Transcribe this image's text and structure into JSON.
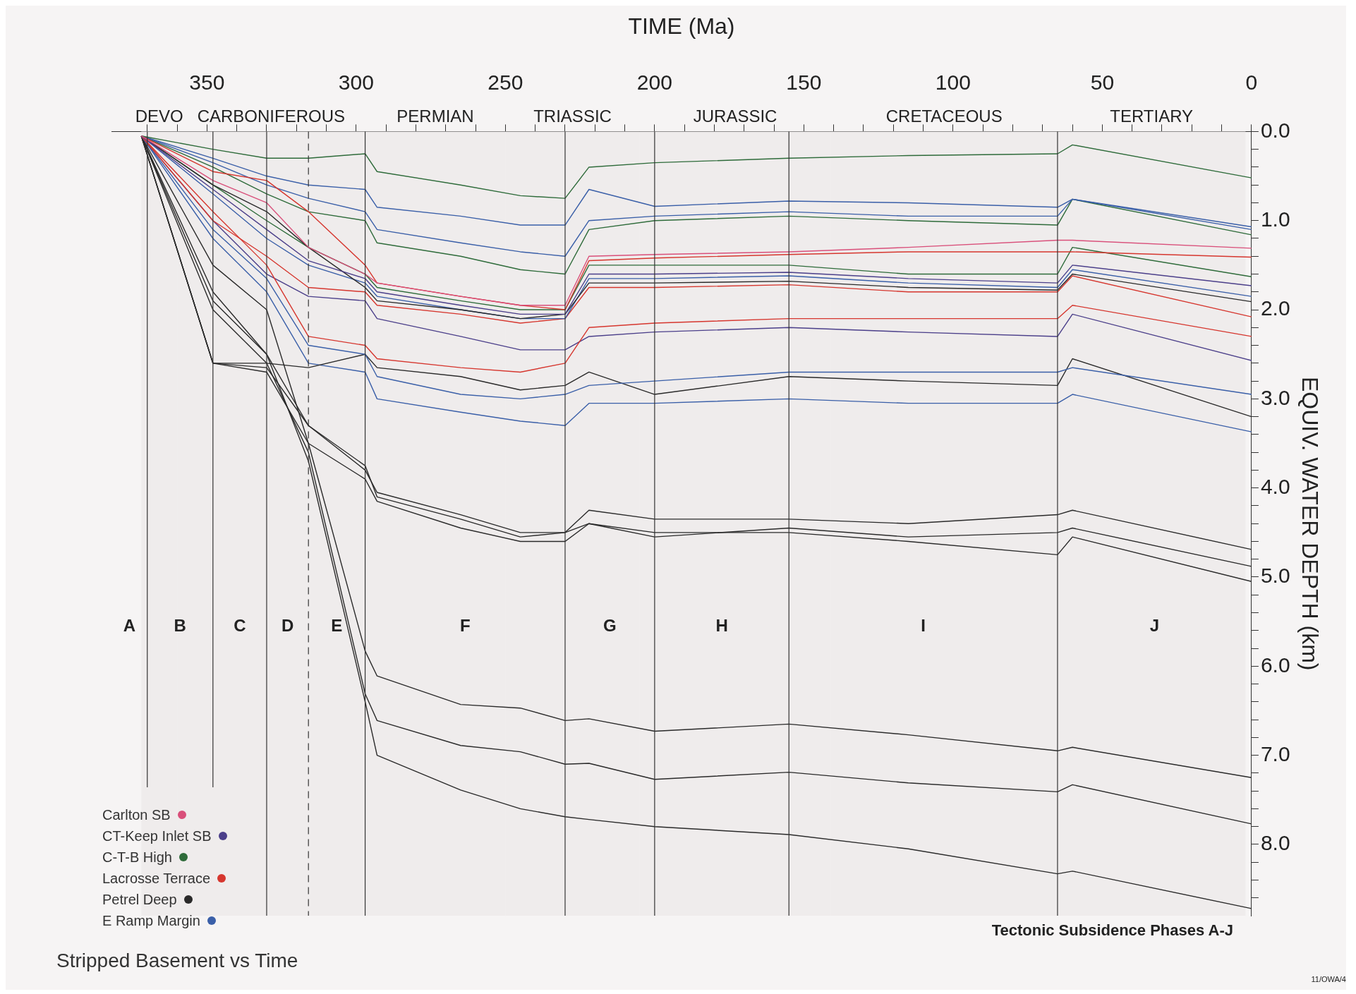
{
  "chart_data": {
    "type": "line",
    "title": "Stripped Basement vs Time",
    "xlabel": "TIME (Ma)",
    "ylabel": "EQUIV. WATER DEPTH (km)",
    "x": [
      372,
      348,
      330,
      316,
      297,
      293,
      265,
      245,
      230,
      222,
      200,
      155,
      115,
      65,
      60,
      0
    ],
    "series": [
      {
        "name": "Carlton SB",
        "color": "#d94f7a",
        "values": [
          0.05,
          0.55,
          0.8,
          1.3,
          1.6,
          1.7,
          1.85,
          1.95,
          1.95,
          1.4,
          1.38,
          1.35,
          1.3,
          1.22,
          1.22,
          1.31
        ]
      },
      {
        "name": "CT-Keep Inlet SB",
        "color": "#4b3f8a",
        "values": [
          0.05,
          0.65,
          1.1,
          1.45,
          1.65,
          1.8,
          1.95,
          2.05,
          2.05,
          1.6,
          1.6,
          1.58,
          1.65,
          1.7,
          1.5,
          1.73
        ]
      },
      {
        "name": "C-T-B High",
        "color": "#2e6b3a",
        "values": [
          0.05,
          0.2,
          0.3,
          0.3,
          0.25,
          0.45,
          0.6,
          0.72,
          0.75,
          0.4,
          0.35,
          0.3,
          0.27,
          0.25,
          0.15,
          0.52
        ]
      },
      {
        "name": "Lacrosse Terrace",
        "color": "#d6362e",
        "values": [
          0.05,
          0.45,
          0.55,
          0.9,
          1.5,
          1.7,
          1.85,
          1.95,
          2.0,
          1.45,
          1.42,
          1.38,
          1.35,
          1.35,
          1.35,
          1.41
        ]
      },
      {
        "name": "Petrel Deep",
        "color": "#2a2a2a",
        "values": [
          0.05,
          0.6,
          0.9,
          1.3,
          1.75,
          1.9,
          2.0,
          2.1,
          2.05,
          1.7,
          1.7,
          1.68,
          1.75,
          1.78,
          1.6,
          1.91
        ]
      },
      {
        "name": "E Ramp Margin",
        "color": "#3a5fa8",
        "values": [
          0.05,
          0.3,
          0.5,
          0.6,
          0.65,
          0.85,
          0.95,
          1.05,
          1.05,
          0.65,
          0.84,
          0.78,
          0.8,
          0.85,
          0.76,
          1.07
        ]
      },
      {
        "color": "#3a5fa8",
        "values": [
          0.05,
          0.35,
          0.6,
          0.75,
          0.9,
          1.1,
          1.25,
          1.35,
          1.4,
          1.0,
          0.95,
          0.9,
          0.95,
          0.95,
          0.76,
          1.1
        ]
      },
      {
        "color": "#2e6b3a",
        "values": [
          0.05,
          0.4,
          0.7,
          0.9,
          1.0,
          1.25,
          1.4,
          1.55,
          1.6,
          1.1,
          1.0,
          0.95,
          1.0,
          1.05,
          0.76,
          1.16
        ]
      },
      {
        "color": "#2e6b3a",
        "values": [
          0.05,
          0.6,
          1.0,
          1.3,
          1.6,
          1.75,
          1.9,
          2.0,
          2.0,
          1.5,
          1.5,
          1.5,
          1.6,
          1.6,
          1.3,
          1.63
        ]
      },
      {
        "color": "#3a5fa8",
        "values": [
          0.05,
          0.7,
          1.2,
          1.5,
          1.7,
          1.85,
          2.0,
          2.1,
          2.1,
          1.65,
          1.65,
          1.62,
          1.7,
          1.75,
          1.55,
          1.85
        ]
      },
      {
        "color": "#d6362e",
        "values": [
          0.05,
          1.0,
          1.4,
          1.75,
          1.8,
          1.95,
          2.05,
          2.15,
          2.1,
          1.75,
          1.75,
          1.72,
          1.8,
          1.8,
          1.62,
          2.08
        ]
      },
      {
        "color": "#d6362e",
        "values": [
          0.05,
          0.9,
          1.5,
          2.3,
          2.4,
          2.55,
          2.65,
          2.7,
          2.6,
          2.2,
          2.15,
          2.1,
          2.1,
          2.1,
          1.95,
          2.3
        ]
      },
      {
        "color": "#4b3f8a",
        "values": [
          0.05,
          1.0,
          1.6,
          1.85,
          1.9,
          2.1,
          2.3,
          2.45,
          2.45,
          2.3,
          2.25,
          2.2,
          2.25,
          2.3,
          2.05,
          2.57
        ]
      },
      {
        "color": "#3a5fa8",
        "values": [
          0.05,
          1.1,
          1.65,
          2.4,
          2.5,
          2.75,
          2.95,
          3.0,
          2.95,
          2.85,
          2.8,
          2.7,
          2.7,
          2.7,
          2.65,
          2.95
        ]
      },
      {
        "color": "#2a2a2a",
        "values": [
          0.05,
          2.6,
          2.6,
          2.65,
          2.5,
          2.65,
          2.75,
          2.9,
          2.85,
          2.7,
          2.95,
          2.75,
          2.8,
          2.85,
          2.55,
          3.2
        ]
      },
      {
        "color": "#3a5fa8",
        "values": [
          0.05,
          1.2,
          1.8,
          2.6,
          2.7,
          3.0,
          3.15,
          3.25,
          3.3,
          3.05,
          3.05,
          3.0,
          3.05,
          3.05,
          2.95,
          3.37
        ]
      },
      {
        "color": "#2a2a2a",
        "values": [
          0.05,
          2.6,
          2.65,
          3.3,
          3.8,
          4.05,
          4.3,
          4.5,
          4.5,
          4.25,
          4.35,
          4.35,
          4.4,
          4.3,
          4.25,
          4.69
        ]
      },
      {
        "color": "#2a2a2a",
        "values": [
          0.05,
          1.9,
          2.5,
          3.3,
          3.75,
          4.1,
          4.35,
          4.55,
          4.5,
          4.4,
          4.55,
          4.45,
          4.55,
          4.5,
          4.45,
          4.88
        ]
      },
      {
        "color": "#2a2a2a",
        "values": [
          0.05,
          1.5,
          2.0,
          3.5,
          3.9,
          4.15,
          4.45,
          4.6,
          4.6,
          4.4,
          4.5,
          4.5,
          4.6,
          4.75,
          4.55,
          5.05
        ]
      },
      {
        "color": "#2a2a2a",
        "values": [
          0.05,
          2.6,
          2.7,
          3.5,
          5.83,
          6.11,
          6.43,
          6.47,
          6.61,
          6.59,
          6.73,
          6.65,
          6.77,
          6.95,
          6.91,
          7.25
        ]
      },
      {
        "color": "#2a2a2a",
        "values": [
          0.05,
          2.0,
          2.6,
          3.6,
          6.31,
          6.61,
          6.89,
          6.96,
          7.1,
          7.09,
          7.27,
          7.19,
          7.31,
          7.41,
          7.33,
          7.77
        ]
      },
      {
        "color": "#2a2a2a",
        "values": [
          0.05,
          1.8,
          2.5,
          3.7,
          6.4,
          7.0,
          7.39,
          7.6,
          7.69,
          7.72,
          7.8,
          7.89,
          8.05,
          8.33,
          8.3,
          8.72
        ]
      }
    ],
    "xlim": [
      382,
      0
    ],
    "xticks": [
      {
        "value": 370,
        "label": null
      },
      {
        "value": 360,
        "label": null
      },
      350,
      {
        "value": 340,
        "label": null
      },
      {
        "value": 330,
        "label": null
      },
      {
        "value": 320,
        "label": null
      },
      {
        "value": 310,
        "label": null
      },
      300,
      {
        "value": 290,
        "label": null
      },
      {
        "value": 280,
        "label": null
      },
      {
        "value": 270,
        "label": null
      },
      {
        "value": 260,
        "label": null
      },
      250,
      {
        "value": 240,
        "label": null
      },
      {
        "value": 230,
        "label": null
      },
      {
        "value": 220,
        "label": null
      },
      {
        "value": 210,
        "label": null
      },
      200,
      {
        "value": 190,
        "label": null
      },
      {
        "value": 180,
        "label": null
      },
      {
        "value": 170,
        "label": null
      },
      {
        "value": 160,
        "label": null
      },
      150,
      {
        "value": 140,
        "label": null
      },
      {
        "value": 130,
        "label": null
      },
      {
        "value": 120,
        "label": null
      },
      {
        "value": 110,
        "label": null
      },
      100,
      {
        "value": 90,
        "label": null
      },
      {
        "value": 80,
        "label": null
      },
      {
        "value": 70,
        "label": null
      },
      {
        "value": 60,
        "label": null
      },
      50,
      {
        "value": 40,
        "label": null
      },
      {
        "value": 30,
        "label": null
      },
      {
        "value": 20,
        "label": null
      },
      {
        "value": 10,
        "label": null
      },
      0
    ],
    "ylim": [
      8.8,
      0
    ],
    "yticks": [
      {
        "value": 0,
        "label": "0.0"
      },
      {
        "value": 0.2,
        "label": null
      },
      {
        "value": 0.4,
        "label": null
      },
      {
        "value": 0.6,
        "label": null
      },
      {
        "value": 0.8,
        "label": null
      },
      {
        "value": 1,
        "label": "1.0"
      },
      {
        "value": 1.2,
        "label": null
      },
      {
        "value": 1.4,
        "label": null
      },
      {
        "value": 1.6,
        "label": null
      },
      {
        "value": 1.8,
        "label": null
      },
      {
        "value": 2,
        "label": "2.0"
      },
      {
        "value": 2.2,
        "label": null
      },
      {
        "value": 2.4,
        "label": null
      },
      {
        "value": 2.6,
        "label": null
      },
      {
        "value": 2.8,
        "label": null
      },
      {
        "value": 3,
        "label": "3.0"
      },
      {
        "value": 3.2,
        "label": null
      },
      {
        "value": 3.4,
        "label": null
      },
      {
        "value": 3.6,
        "label": null
      },
      {
        "value": 3.8,
        "label": null
      },
      {
        "value": 4,
        "label": "4.0"
      },
      {
        "value": 4.2,
        "label": null
      },
      {
        "value": 4.4,
        "label": null
      },
      {
        "value": 4.6,
        "label": null
      },
      {
        "value": 4.8,
        "label": null
      },
      {
        "value": 5,
        "label": "5.0"
      },
      {
        "value": 5.2,
        "label": null
      },
      {
        "value": 5.4,
        "label": null
      },
      {
        "value": 5.6,
        "label": null
      },
      {
        "value": 5.8,
        "label": null
      },
      {
        "value": 6,
        "label": "6.0"
      },
      {
        "value": 6.2,
        "label": null
      },
      {
        "value": 6.4,
        "label": null
      },
      {
        "value": 6.6,
        "label": null
      },
      {
        "value": 6.8,
        "label": null
      },
      {
        "value": 7,
        "label": "7.0"
      },
      {
        "value": 7.2,
        "label": null
      },
      {
        "value": 7.4,
        "label": null
      },
      {
        "value": 7.6,
        "label": null
      },
      {
        "value": 7.8,
        "label": null
      },
      {
        "value": 8,
        "label": "8.0"
      },
      {
        "value": 8.2,
        "label": null
      },
      {
        "value": 8.4,
        "label": null
      },
      {
        "value": 8.6,
        "label": null
      }
    ],
    "ref_lines": [
      {
        "axis": "x",
        "value": 370
      },
      {
        "axis": "x",
        "value": 348
      },
      {
        "axis": "x",
        "value": 330
      },
      {
        "axis": "x",
        "value": 316,
        "line_style": "dashed"
      },
      {
        "axis": "x",
        "value": 297
      },
      {
        "axis": "x",
        "value": 230
      },
      {
        "axis": "x",
        "value": 200
      },
      {
        "axis": "x",
        "value": 155
      },
      {
        "axis": "x",
        "value": 65
      }
    ],
    "bands": [
      {
        "axis": "x",
        "from": 372,
        "to": 360,
        "label": "DEVO",
        "color": "#efecec"
      },
      {
        "axis": "x",
        "from": 360,
        "to": 297,
        "label": "CARBONIFEROUS",
        "color": "#efecec"
      },
      {
        "axis": "x",
        "from": 297,
        "to": 250,
        "label": "PERMIAN",
        "color": "#efecec"
      },
      {
        "axis": "x",
        "from": 250,
        "to": 205,
        "label": "TRIASSIC",
        "color": "#efecec"
      },
      {
        "axis": "x",
        "from": 205,
        "to": 141,
        "label": "JURASSIC",
        "color": "#efecec"
      },
      {
        "axis": "x",
        "from": 141,
        "to": 65,
        "label": "CRETACEOUS",
        "color": "#efecec"
      },
      {
        "axis": "x",
        "from": 65,
        "to": 2,
        "label": "TERTIARY",
        "color": "#efecec"
      }
    ],
    "annotations": [
      "A",
      "B",
      "C",
      "D",
      "E",
      "F",
      "G",
      "H",
      "I",
      "J",
      "Tectonic Subsidence Phases A-J",
      "11/OWA/4"
    ],
    "grid": false,
    "legend": "bottom left",
    "marker": "none"
  }
}
